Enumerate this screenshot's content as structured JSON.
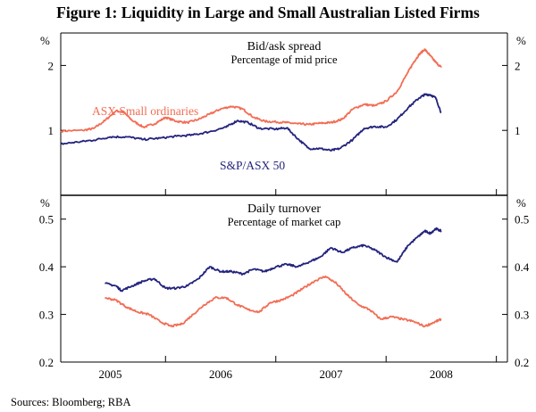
{
  "figure": {
    "title": "Figure 1: Liquidity in Large and Small Australian Listed Firms",
    "source": "Sources:   Bloomberg; RBA"
  },
  "x_axis": {
    "tick_labels": [
      "2005",
      "2006",
      "2007",
      "2008"
    ],
    "tick_years": [
      2005.0,
      2006.0,
      2007.0,
      2008.0
    ],
    "range": [
      2004.55,
      2008.6
    ],
    "year_boundaries": [
      2005.5,
      2006.5,
      2007.5,
      2008.5
    ]
  },
  "colors": {
    "small": "#f26d55",
    "large": "#23237e",
    "axis": "#000000"
  },
  "chart_data": [
    {
      "type": "line",
      "title": "Bid/ask spread",
      "subtitle": "Percentage of mid price",
      "ylabel_left": "%",
      "ylabel_right": "%",
      "ylim": [
        0,
        2.5
      ],
      "yticks": [
        1,
        2
      ],
      "ytick_labels": [
        "1",
        "2"
      ],
      "series": [
        {
          "name": "ASX Small ordinaries",
          "color_key": "small",
          "x": [
            2004.55,
            2004.75,
            2004.85,
            2004.95,
            2005.05,
            2005.12,
            2005.2,
            2005.3,
            2005.4,
            2005.5,
            2005.6,
            2005.7,
            2005.8,
            2005.9,
            2006.0,
            2006.1,
            2006.2,
            2006.3,
            2006.4,
            2006.5,
            2006.6,
            2006.7,
            2006.8,
            2006.9,
            2007.0,
            2007.1,
            2007.2,
            2007.3,
            2007.4,
            2007.5,
            2007.6,
            2007.7,
            2007.75,
            2007.8,
            2007.85,
            2007.9,
            2007.95,
            2008.0
          ],
          "values": [
            0.99,
            1.0,
            1.03,
            1.15,
            1.3,
            1.28,
            1.15,
            1.05,
            1.1,
            1.2,
            1.14,
            1.12,
            1.17,
            1.25,
            1.33,
            1.37,
            1.33,
            1.2,
            1.14,
            1.13,
            1.12,
            1.1,
            1.09,
            1.11,
            1.12,
            1.17,
            1.33,
            1.4,
            1.38,
            1.45,
            1.6,
            1.9,
            2.05,
            2.17,
            2.25,
            2.15,
            2.05,
            1.97
          ]
        },
        {
          "name": "S&P/ASX 50",
          "color_key": "large",
          "x": [
            2004.55,
            2004.7,
            2004.85,
            2005.0,
            2005.15,
            2005.3,
            2005.45,
            2005.6,
            2005.75,
            2005.9,
            2006.05,
            2006.15,
            2006.25,
            2006.35,
            2006.5,
            2006.6,
            2006.7,
            2006.8,
            2006.9,
            2007.0,
            2007.08,
            2007.2,
            2007.3,
            2007.4,
            2007.5,
            2007.6,
            2007.7,
            2007.8,
            2007.85,
            2007.9,
            2007.95,
            2008.0
          ],
          "values": [
            0.79,
            0.82,
            0.85,
            0.9,
            0.9,
            0.86,
            0.88,
            0.91,
            0.93,
            0.98,
            1.05,
            1.15,
            1.12,
            1.03,
            1.02,
            1.04,
            0.87,
            0.72,
            0.72,
            0.69,
            0.72,
            0.86,
            1.03,
            1.06,
            1.05,
            1.17,
            1.35,
            1.5,
            1.55,
            1.55,
            1.5,
            1.27
          ]
        }
      ]
    },
    {
      "type": "line",
      "title": "Daily turnover",
      "subtitle": "Percentage of market cap",
      "ylabel_left": "%",
      "ylabel_right": "%",
      "ylim": [
        0.2,
        0.55
      ],
      "yticks": [
        0.2,
        0.3,
        0.4,
        0.5
      ],
      "ytick_labels": [
        "0.2",
        "0.3",
        "0.4",
        "0.5"
      ],
      "series": [
        {
          "name": "S&P/ASX 50",
          "color_key": "large",
          "x": [
            2004.95,
            2005.05,
            2005.1,
            2005.2,
            2005.3,
            2005.4,
            2005.5,
            2005.6,
            2005.7,
            2005.8,
            2005.9,
            2006.0,
            2006.1,
            2006.2,
            2006.3,
            2006.4,
            2006.5,
            2006.6,
            2006.7,
            2006.8,
            2006.9,
            2007.0,
            2007.1,
            2007.2,
            2007.3,
            2007.4,
            2007.5,
            2007.6,
            2007.7,
            2007.8,
            2007.85,
            2007.9,
            2007.95,
            2008.0
          ],
          "values": [
            0.365,
            0.36,
            0.35,
            0.36,
            0.37,
            0.375,
            0.355,
            0.355,
            0.36,
            0.375,
            0.4,
            0.39,
            0.39,
            0.385,
            0.395,
            0.39,
            0.4,
            0.405,
            0.4,
            0.41,
            0.42,
            0.44,
            0.43,
            0.44,
            0.445,
            0.435,
            0.42,
            0.41,
            0.445,
            0.465,
            0.475,
            0.47,
            0.48,
            0.475
          ]
        },
        {
          "name": "ASX Small ordinaries",
          "color_key": "small",
          "x": [
            2004.95,
            2005.05,
            2005.15,
            2005.25,
            2005.35,
            2005.45,
            2005.55,
            2005.65,
            2005.75,
            2005.85,
            2005.95,
            2006.05,
            2006.15,
            2006.25,
            2006.35,
            2006.45,
            2006.55,
            2006.65,
            2006.75,
            2006.85,
            2006.95,
            2007.05,
            2007.15,
            2007.25,
            2007.35,
            2007.45,
            2007.55,
            2007.65,
            2007.75,
            2007.85,
            2007.95,
            2008.0
          ],
          "values": [
            0.335,
            0.33,
            0.315,
            0.305,
            0.3,
            0.285,
            0.275,
            0.28,
            0.3,
            0.32,
            0.335,
            0.335,
            0.32,
            0.31,
            0.305,
            0.325,
            0.33,
            0.34,
            0.355,
            0.37,
            0.38,
            0.365,
            0.34,
            0.32,
            0.31,
            0.29,
            0.295,
            0.29,
            0.285,
            0.275,
            0.285,
            0.29
          ]
        }
      ]
    }
  ],
  "annotations": {
    "small_label": "ASX Small ordinaries",
    "large_label": "S&P/ASX 50"
  }
}
